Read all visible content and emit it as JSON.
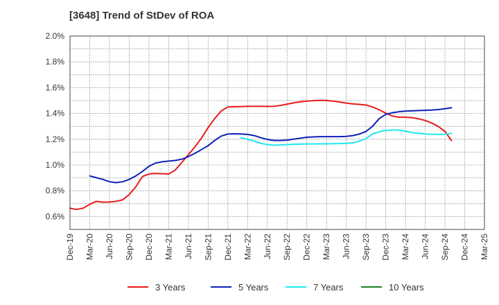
{
  "chart_data": {
    "type": "line",
    "title": "[3648]  Trend of StDev of ROA",
    "xlabel": "",
    "ylabel": "",
    "x": [
      "Dec-19",
      "Mar-20",
      "Jun-20",
      "Sep-20",
      "Dec-20",
      "Mar-21",
      "Jun-21",
      "Sep-21",
      "Dec-21",
      "Mar-22",
      "Jun-22",
      "Sep-22",
      "Dec-22",
      "Mar-23",
      "Jun-23",
      "Sep-23",
      "Dec-23",
      "Mar-24",
      "Jun-24",
      "Sep-24",
      "Dec-24",
      "Mar-25"
    ],
    "x_ticks": [
      "Dec-19",
      "Mar-20",
      "Jun-20",
      "Sep-20",
      "Dec-20",
      "Mar-21",
      "Jun-21",
      "Sep-21",
      "Dec-21",
      "Mar-22",
      "Jun-22",
      "Sep-22",
      "Dec-22",
      "Mar-23",
      "Jun-23",
      "Sep-23",
      "Dec-23",
      "Mar-24",
      "Jun-24",
      "Sep-24",
      "Dec-24",
      "Mar-25"
    ],
    "y_ticks": [
      "0.6%",
      "0.8%",
      "1.0%",
      "1.2%",
      "1.4%",
      "1.6%",
      "1.8%",
      "2.0%"
    ],
    "ylim": [
      0.5,
      2.0
    ],
    "y_unit": "%",
    "grid": true,
    "legend_position": "bottom",
    "series": [
      {
        "name": "3 Years",
        "color": "#e8191a",
        "points": [
          [
            0.0,
            0.665
          ],
          [
            0.33,
            0.655
          ],
          [
            0.67,
            0.665
          ],
          [
            1.0,
            0.695
          ],
          [
            1.33,
            0.718
          ],
          [
            1.67,
            0.712
          ],
          [
            2.0,
            0.713
          ],
          [
            2.33,
            0.718
          ],
          [
            2.67,
            0.73
          ],
          [
            3.0,
            0.77
          ],
          [
            3.33,
            0.83
          ],
          [
            3.67,
            0.91
          ],
          [
            4.0,
            0.93
          ],
          [
            4.33,
            0.935
          ],
          [
            4.67,
            0.932
          ],
          [
            5.0,
            0.93
          ],
          [
            5.33,
            0.96
          ],
          [
            5.67,
            1.02
          ],
          [
            6.0,
            1.08
          ],
          [
            6.33,
            1.14
          ],
          [
            6.67,
            1.21
          ],
          [
            7.0,
            1.29
          ],
          [
            7.33,
            1.36
          ],
          [
            7.67,
            1.42
          ],
          [
            8.0,
            1.45
          ],
          [
            8.33,
            1.452
          ],
          [
            8.67,
            1.453
          ],
          [
            9.0,
            1.455
          ],
          [
            9.33,
            1.455
          ],
          [
            9.67,
            1.455
          ],
          [
            10.0,
            1.454
          ],
          [
            10.33,
            1.455
          ],
          [
            10.67,
            1.462
          ],
          [
            11.0,
            1.472
          ],
          [
            11.33,
            1.482
          ],
          [
            11.67,
            1.49
          ],
          [
            12.0,
            1.495
          ],
          [
            12.33,
            1.499
          ],
          [
            12.67,
            1.501
          ],
          [
            13.0,
            1.5
          ],
          [
            13.33,
            1.495
          ],
          [
            13.67,
            1.488
          ],
          [
            14.0,
            1.48
          ],
          [
            14.33,
            1.474
          ],
          [
            14.67,
            1.47
          ],
          [
            15.0,
            1.465
          ],
          [
            15.33,
            1.45
          ],
          [
            15.67,
            1.428
          ],
          [
            16.0,
            1.402
          ],
          [
            16.33,
            1.38
          ],
          [
            16.67,
            1.37
          ],
          [
            17.0,
            1.37
          ],
          [
            17.33,
            1.367
          ],
          [
            17.67,
            1.358
          ],
          [
            18.0,
            1.345
          ],
          [
            18.33,
            1.325
          ],
          [
            18.67,
            1.298
          ],
          [
            19.0,
            1.26
          ],
          [
            19.33,
            1.19
          ]
        ]
      },
      {
        "name": "5 Years",
        "color": "#0d1fb8",
        "points": [
          [
            1.0,
            0.915
          ],
          [
            1.33,
            0.902
          ],
          [
            1.67,
            0.888
          ],
          [
            2.0,
            0.87
          ],
          [
            2.33,
            0.863
          ],
          [
            2.67,
            0.87
          ],
          [
            3.0,
            0.888
          ],
          [
            3.33,
            0.915
          ],
          [
            3.67,
            0.95
          ],
          [
            4.0,
            0.99
          ],
          [
            4.33,
            1.015
          ],
          [
            4.67,
            1.025
          ],
          [
            5.0,
            1.03
          ],
          [
            5.33,
            1.035
          ],
          [
            5.67,
            1.045
          ],
          [
            6.0,
            1.065
          ],
          [
            6.33,
            1.09
          ],
          [
            6.67,
            1.12
          ],
          [
            7.0,
            1.15
          ],
          [
            7.33,
            1.19
          ],
          [
            7.67,
            1.225
          ],
          [
            8.0,
            1.24
          ],
          [
            8.33,
            1.242
          ],
          [
            8.67,
            1.24
          ],
          [
            9.0,
            1.237
          ],
          [
            9.33,
            1.228
          ],
          [
            9.67,
            1.212
          ],
          [
            10.0,
            1.198
          ],
          [
            10.33,
            1.19
          ],
          [
            10.67,
            1.19
          ],
          [
            11.0,
            1.193
          ],
          [
            11.33,
            1.2
          ],
          [
            11.67,
            1.208
          ],
          [
            12.0,
            1.215
          ],
          [
            12.33,
            1.218
          ],
          [
            12.67,
            1.22
          ],
          [
            13.0,
            1.22
          ],
          [
            13.33,
            1.22
          ],
          [
            13.67,
            1.22
          ],
          [
            14.0,
            1.222
          ],
          [
            14.33,
            1.228
          ],
          [
            14.67,
            1.24
          ],
          [
            15.0,
            1.26
          ],
          [
            15.33,
            1.3
          ],
          [
            15.67,
            1.36
          ],
          [
            16.0,
            1.393
          ],
          [
            16.33,
            1.405
          ],
          [
            16.67,
            1.413
          ],
          [
            17.0,
            1.418
          ],
          [
            17.33,
            1.42
          ],
          [
            17.67,
            1.422
          ],
          [
            18.0,
            1.424
          ],
          [
            18.33,
            1.426
          ],
          [
            18.67,
            1.43
          ],
          [
            19.0,
            1.436
          ],
          [
            19.33,
            1.444
          ]
        ]
      },
      {
        "name": "7 Years",
        "color": "#1ee8ee",
        "points": [
          [
            8.67,
            1.21
          ],
          [
            9.0,
            1.2
          ],
          [
            9.33,
            1.185
          ],
          [
            9.67,
            1.168
          ],
          [
            10.0,
            1.158
          ],
          [
            10.33,
            1.153
          ],
          [
            10.67,
            1.155
          ],
          [
            11.0,
            1.158
          ],
          [
            11.33,
            1.16
          ],
          [
            11.67,
            1.162
          ],
          [
            12.0,
            1.163
          ],
          [
            12.33,
            1.163
          ],
          [
            12.67,
            1.164
          ],
          [
            13.0,
            1.164
          ],
          [
            13.33,
            1.165
          ],
          [
            13.67,
            1.166
          ],
          [
            14.0,
            1.168
          ],
          [
            14.33,
            1.172
          ],
          [
            14.67,
            1.185
          ],
          [
            15.0,
            1.205
          ],
          [
            15.33,
            1.24
          ],
          [
            15.67,
            1.258
          ],
          [
            16.0,
            1.268
          ],
          [
            16.33,
            1.272
          ],
          [
            16.67,
            1.27
          ],
          [
            17.0,
            1.262
          ],
          [
            17.33,
            1.252
          ],
          [
            17.67,
            1.245
          ],
          [
            18.0,
            1.24
          ],
          [
            18.33,
            1.238
          ],
          [
            18.67,
            1.237
          ],
          [
            19.0,
            1.238
          ],
          [
            19.33,
            1.245
          ]
        ]
      },
      {
        "name": "10 Years",
        "color": "#1f7f1f",
        "points": []
      }
    ]
  }
}
